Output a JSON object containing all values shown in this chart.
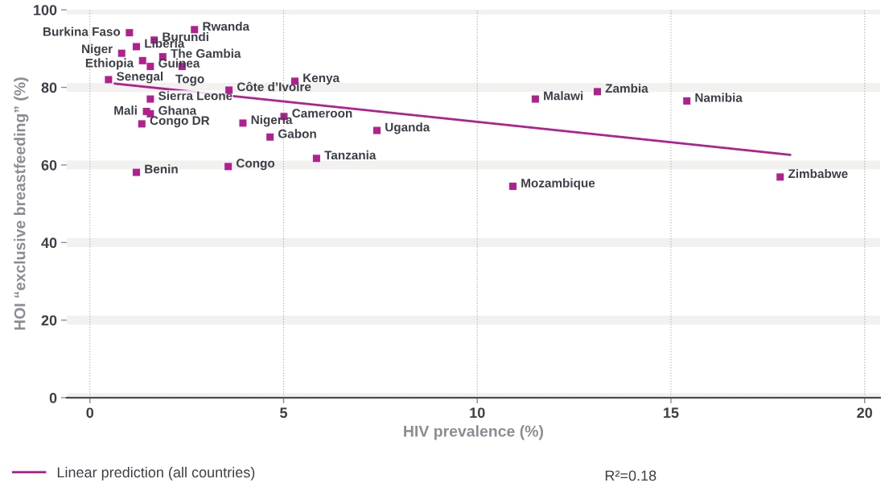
{
  "chart_data": {
    "type": "scatter",
    "xlabel": "HIV prevalence (%)",
    "ylabel": "HOI “exclusive breastfeeding” (%)",
    "xlim": [
      -0.6,
      20.4
    ],
    "xticks": [
      0,
      5,
      10,
      15,
      20
    ],
    "ylim": [
      0,
      100
    ],
    "yticks": [
      0,
      20,
      40,
      60,
      80,
      100
    ],
    "grid": true,
    "legend": "bottom left",
    "series": [
      {
        "marker": "square",
        "color": "#b0218f",
        "x": [
          1.02,
          2.7,
          1.66,
          1.2,
          0.82,
          1.88,
          1.36,
          1.56,
          2.38,
          0.48,
          5.29,
          3.59,
          1.56,
          1.46,
          1.56,
          1.34,
          3.95,
          5.01,
          4.65,
          7.41,
          5.85,
          3.57,
          1.2,
          10.92,
          11.5,
          13.1,
          15.41,
          17.82
        ],
        "values": [
          94.1,
          94.9,
          92.2,
          90.5,
          88.8,
          87.9,
          86.9,
          85.4,
          85.4,
          82.0,
          81.6,
          79.3,
          77.0,
          73.8,
          73.2,
          70.6,
          70.8,
          72.5,
          67.2,
          68.9,
          61.7,
          59.6,
          58.1,
          54.5,
          77.0,
          78.9,
          76.5,
          56.9
        ]
      },
      {
        "type": "line",
        "name": "Linear prediction (all countries)",
        "color": "#b0218f",
        "x": [
          0.64,
          18.08
        ],
        "values": [
          81.0,
          62.6
        ]
      }
    ],
    "annotations": [
      {
        "text": "Burkina Faso",
        "x": 1.02,
        "y": 94.1
      },
      {
        "text": "Rwanda",
        "x": 2.7,
        "y": 94.9
      },
      {
        "text": "Burundi",
        "x": 1.66,
        "y": 92.2
      },
      {
        "text": "Liberia",
        "x": 1.2,
        "y": 90.5
      },
      {
        "text": "Niger",
        "x": 0.82,
        "y": 88.8
      },
      {
        "text": "The Gambia",
        "x": 1.88,
        "y": 87.9
      },
      {
        "text": "Ethiopia",
        "x": 1.36,
        "y": 86.9
      },
      {
        "text": "Guinea",
        "x": 1.56,
        "y": 85.4
      },
      {
        "text": "Togo",
        "x": 2.38,
        "y": 85.4
      },
      {
        "text": "Senegal",
        "x": 0.48,
        "y": 82.0
      },
      {
        "text": "Kenya",
        "x": 5.29,
        "y": 81.6
      },
      {
        "text": "Côte d’Ivoire",
        "x": 3.59,
        "y": 79.3
      },
      {
        "text": "Sierra Leone",
        "x": 1.56,
        "y": 77.0
      },
      {
        "text": "Mali",
        "x": 1.46,
        "y": 73.8
      },
      {
        "text": "Ghana",
        "x": 1.56,
        "y": 73.2
      },
      {
        "text": "Congo DR",
        "x": 1.34,
        "y": 70.6
      },
      {
        "text": "Nigeria",
        "x": 3.95,
        "y": 70.8
      },
      {
        "text": "Cameroon",
        "x": 5.01,
        "y": 72.5
      },
      {
        "text": "Gabon",
        "x": 4.65,
        "y": 67.2
      },
      {
        "text": "Uganda",
        "x": 7.41,
        "y": 68.9
      },
      {
        "text": "Tanzania",
        "x": 5.85,
        "y": 61.7
      },
      {
        "text": "Congo",
        "x": 3.57,
        "y": 59.6
      },
      {
        "text": "Benin",
        "x": 1.2,
        "y": 58.1
      },
      {
        "text": "Mozambique",
        "x": 10.92,
        "y": 54.5
      },
      {
        "text": "Malawi",
        "x": 11.5,
        "y": 77.0
      },
      {
        "text": "Zambia",
        "x": 13.1,
        "y": 78.9
      },
      {
        "text": "Namibia",
        "x": 15.41,
        "y": 76.5
      },
      {
        "text": "Zimbabwe",
        "x": 17.82,
        "y": 56.9
      },
      "R²=0.18"
    ]
  }
}
